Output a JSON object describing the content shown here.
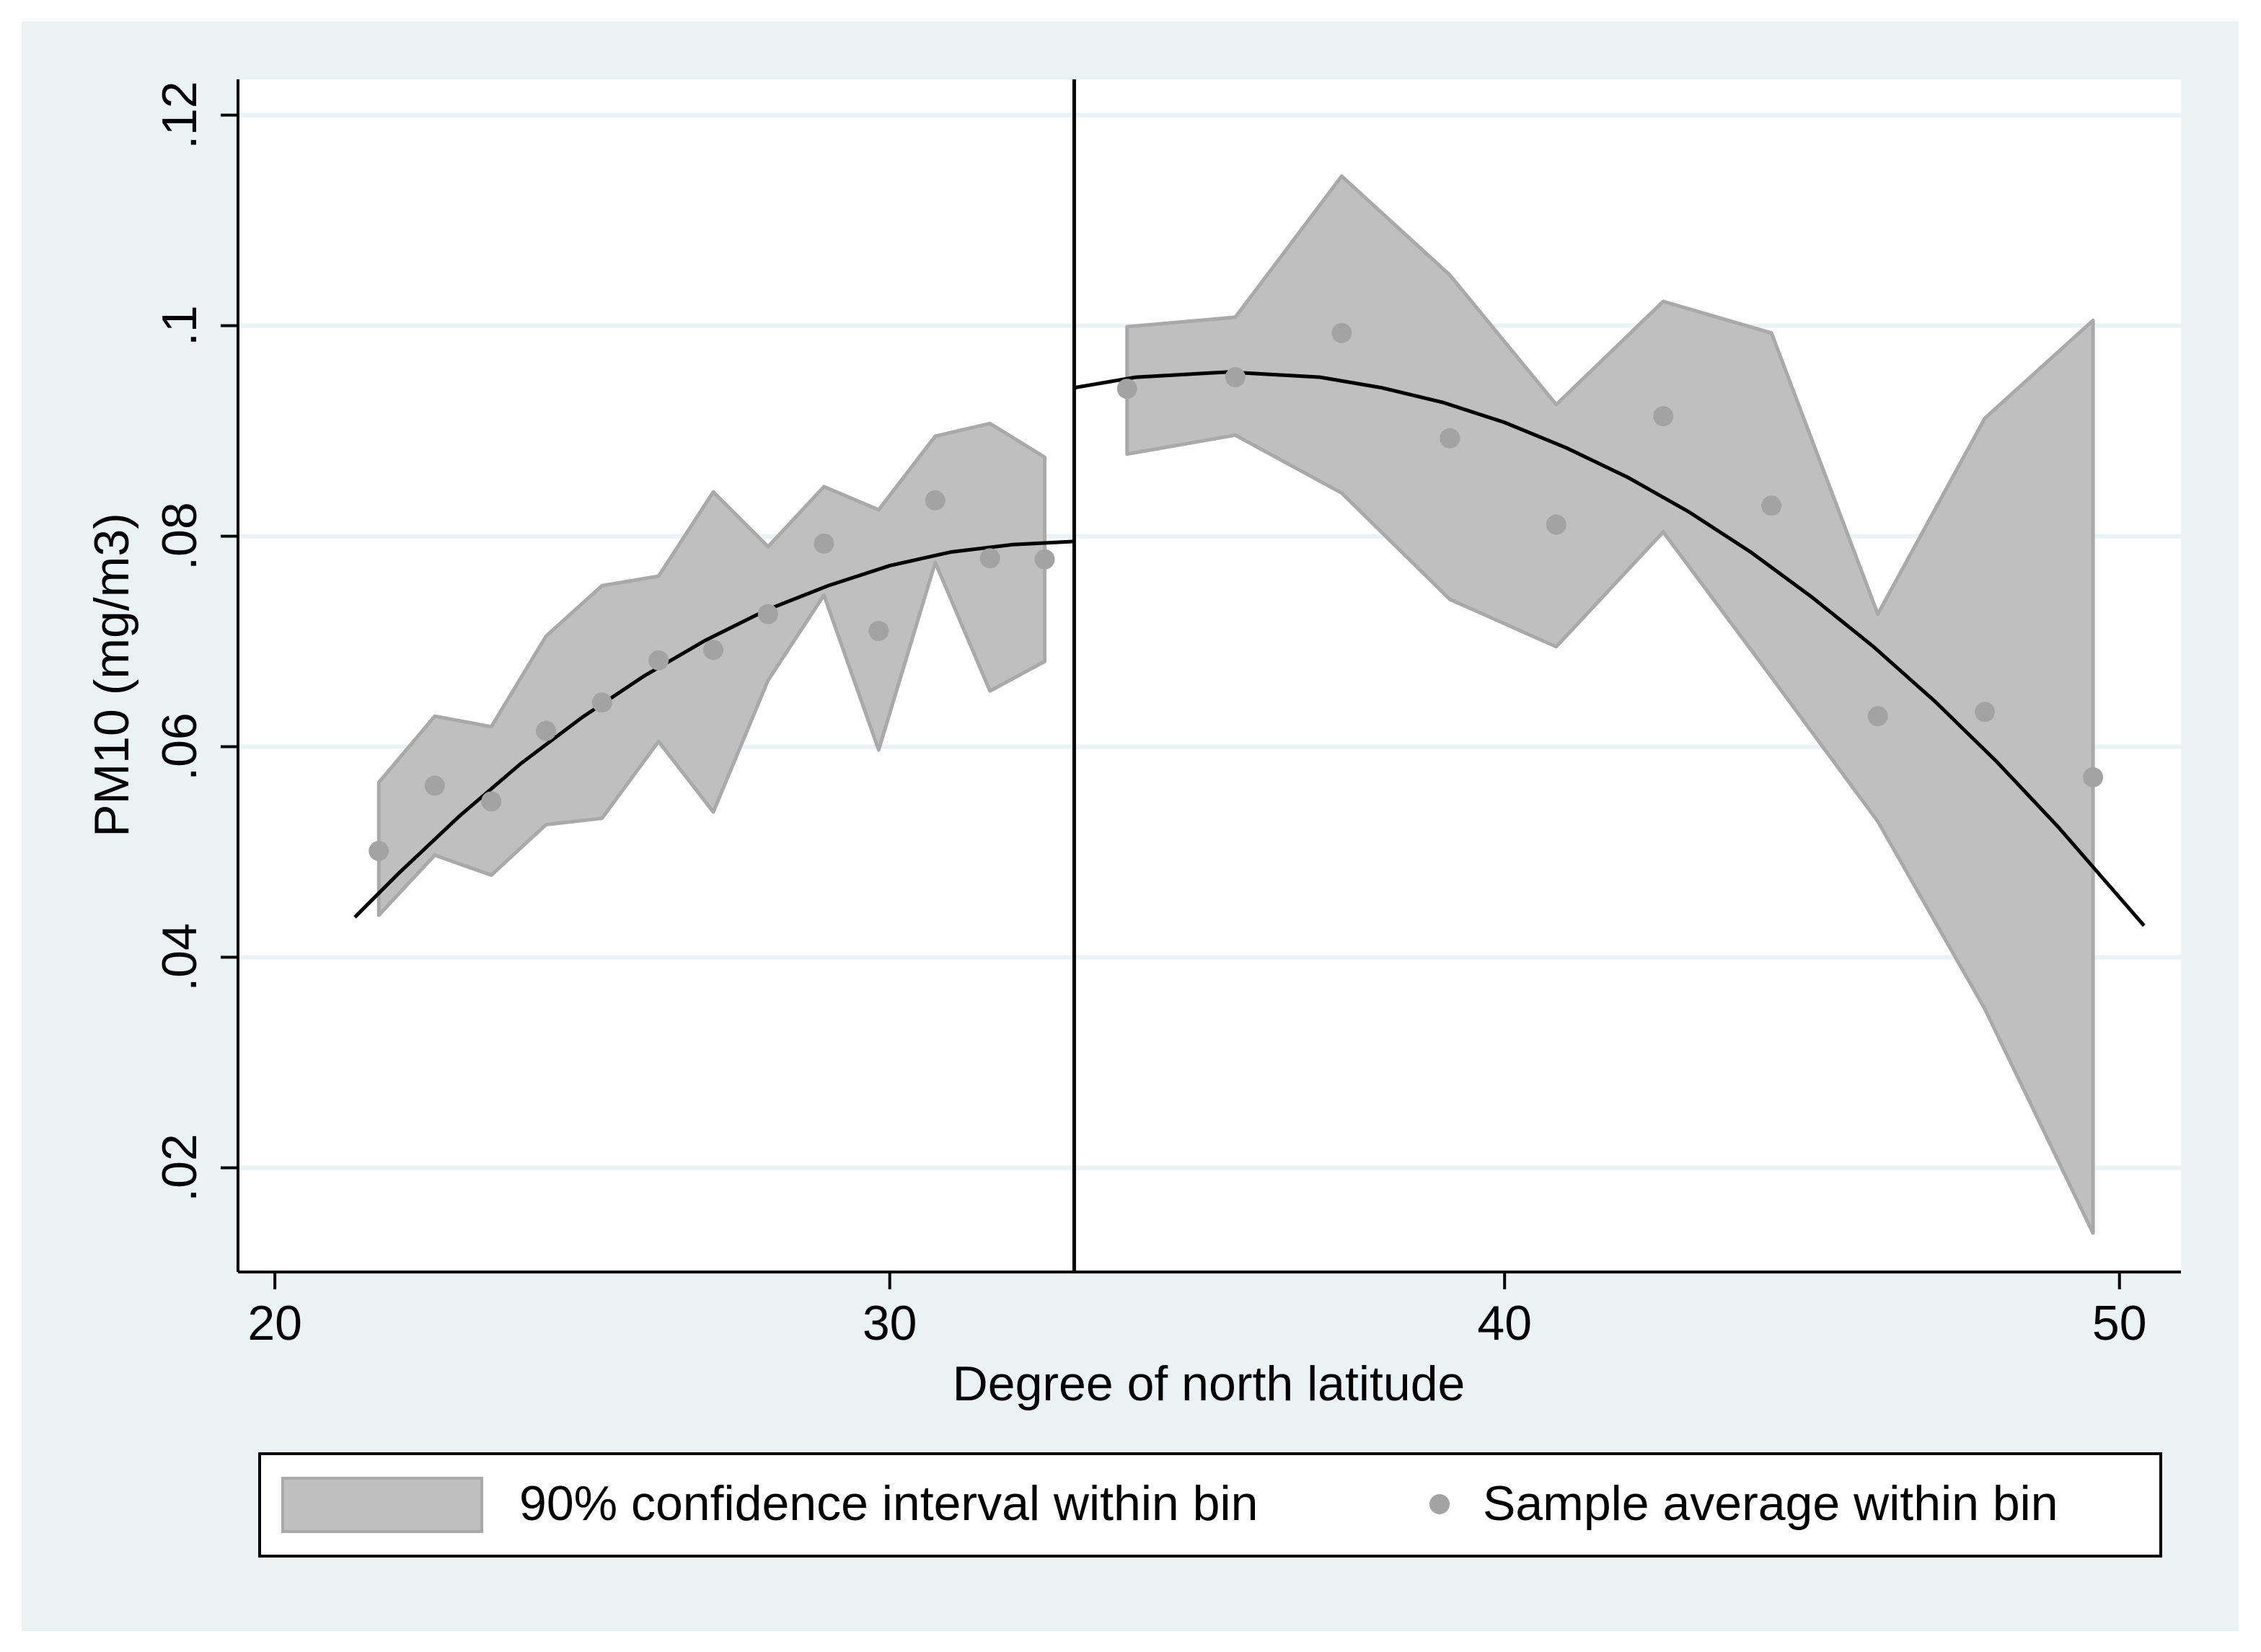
{
  "chart_data": {
    "type": "scatter",
    "xlabel": "Degree of north latitude",
    "ylabel": "PM10  (mg/m3)",
    "xlim": [
      19.4,
      51
    ],
    "ylim": [
      0.0101,
      0.1234
    ],
    "xticks": [
      20,
      30,
      40,
      50
    ],
    "yticks": [
      {
        "value": 0.02,
        "label": ".02"
      },
      {
        "value": 0.04,
        "label": ".04"
      },
      {
        "value": 0.06,
        "label": ".06"
      },
      {
        "value": 0.08,
        "label": ".08"
      },
      {
        "value": 0.1,
        "label": ".1"
      },
      {
        "value": 0.12,
        "label": ".12"
      }
    ],
    "grid": true,
    "cutoff": 33,
    "series": [
      {
        "name": "90% confidence interval within bin",
        "color": "#bfbfbf",
        "x": [
          21.69,
          22.6,
          23.52,
          24.41,
          25.32,
          26.24,
          27.13,
          28.02,
          28.93,
          29.82,
          30.74,
          31.63,
          32.52,
          33.86,
          35.62,
          37.35,
          39.11,
          40.84,
          42.58,
          44.34,
          46.07,
          47.81,
          49.57
        ],
        "upper": [
          0.0566,
          0.0629,
          0.0619,
          0.0705,
          0.0753,
          0.0762,
          0.0842,
          0.079,
          0.0847,
          0.0825,
          0.0895,
          0.0907,
          0.0875,
          0.0999,
          0.1008,
          0.1142,
          0.1048,
          0.0925,
          0.1023,
          0.0993,
          0.0726,
          0.0912,
          0.1005
        ],
        "lower": [
          0.044,
          0.0497,
          0.0478,
          0.0526,
          0.0532,
          0.0605,
          0.0538,
          0.0663,
          0.0744,
          0.0597,
          0.0775,
          0.0653,
          0.0681,
          0.0878,
          0.0896,
          0.0841,
          0.074,
          0.0695,
          0.0804,
          0.0666,
          0.0529,
          0.0351,
          0.0138
        ]
      },
      {
        "name": "Sample average within bin",
        "color": "#a3a3a3",
        "x": [
          21.69,
          22.6,
          23.52,
          24.41,
          25.32,
          26.24,
          27.13,
          28.02,
          28.93,
          29.82,
          30.74,
          31.63,
          32.52,
          33.86,
          35.62,
          37.35,
          39.11,
          40.84,
          42.58,
          44.34,
          46.07,
          47.81,
          49.57
        ],
        "values": [
          0.0501,
          0.0563,
          0.0548,
          0.0615,
          0.0642,
          0.0682,
          0.0692,
          0.0726,
          0.0793,
          0.071,
          0.0834,
          0.0779,
          0.0778,
          0.094,
          0.0951,
          0.0993,
          0.0893,
          0.0811,
          0.0914,
          0.0829,
          0.0629,
          0.0633,
          0.0571
        ]
      }
    ],
    "fit_lines": [
      {
        "color": "#000000",
        "x": [
          21.3,
          22,
          23,
          24,
          25,
          26,
          27,
          28,
          29,
          30,
          31,
          32,
          33
        ],
        "values": [
          0.0438,
          0.0479,
          0.0534,
          0.0584,
          0.0628,
          0.0667,
          0.0701,
          0.073,
          0.0753,
          0.0772,
          0.0785,
          0.0792,
          0.0795
        ]
      },
      {
        "color": "#000000",
        "x": [
          33,
          34,
          35.5,
          37,
          38,
          39,
          40,
          41,
          42,
          43,
          44,
          45,
          46,
          47,
          48,
          49,
          50.4
        ],
        "values": [
          0.0941,
          0.0951,
          0.0956,
          0.0951,
          0.0941,
          0.0927,
          0.0908,
          0.0884,
          0.0856,
          0.0823,
          0.0785,
          0.0742,
          0.0695,
          0.0643,
          0.0586,
          0.0524,
          0.043
        ]
      }
    ]
  }
}
